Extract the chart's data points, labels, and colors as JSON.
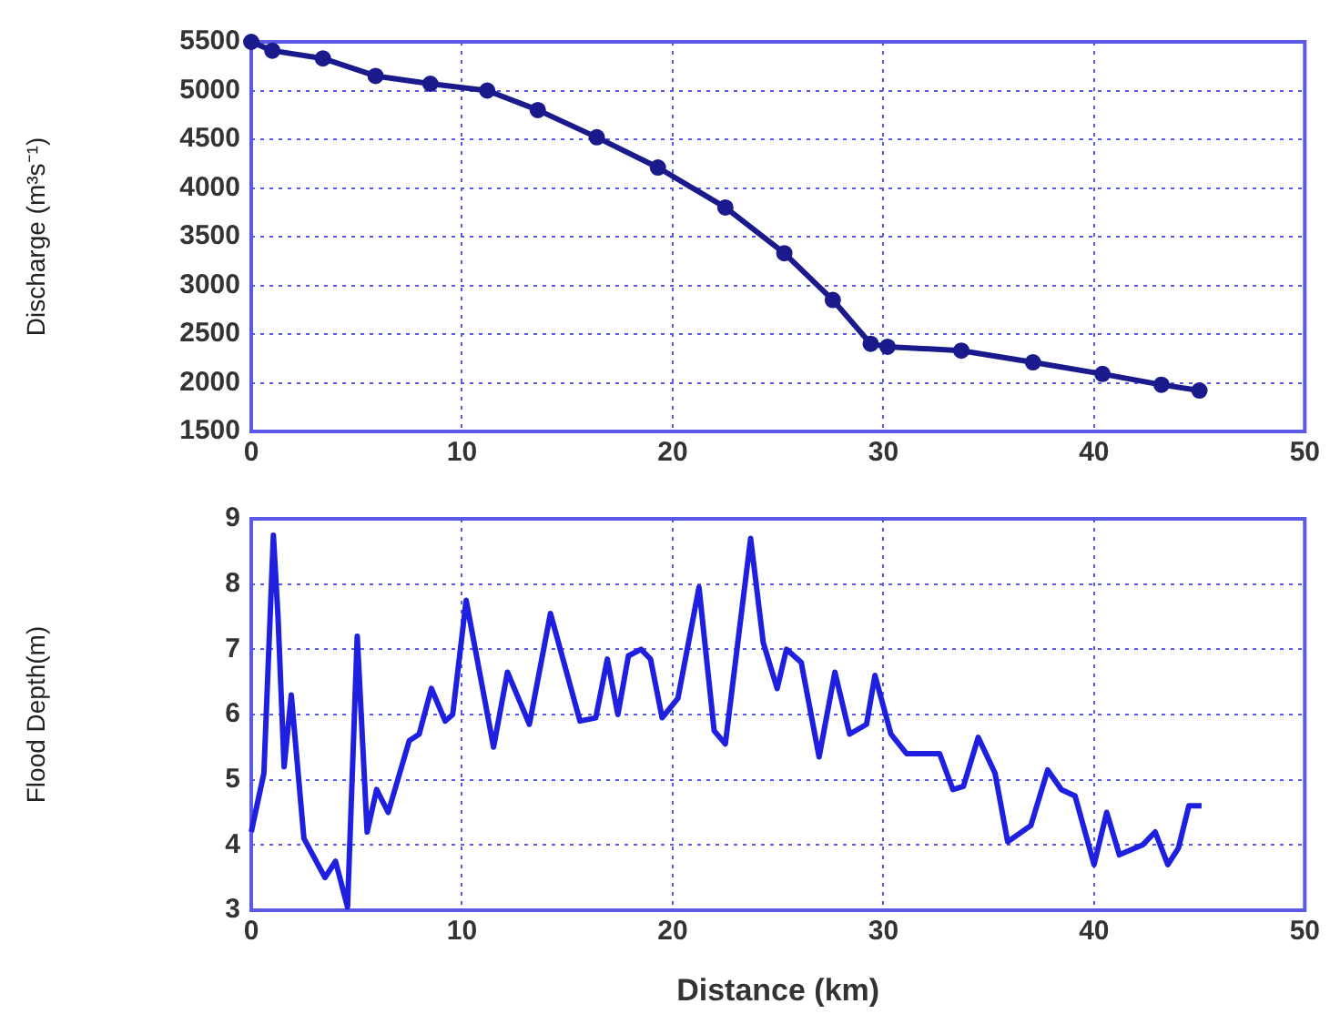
{
  "chart_data": [
    {
      "type": "line",
      "ylabel": "Discharge (m³s⁻¹)",
      "x": [
        0,
        1.0,
        3.4,
        5.9,
        8.5,
        11.2,
        13.6,
        16.4,
        19.3,
        22.5,
        25.3,
        27.6,
        29.4,
        30.2,
        33.7,
        37.1,
        40.4,
        43.2,
        45.0
      ],
      "series": [
        {
          "color": "#1a1a8c",
          "values": [
            5500,
            5410,
            5330,
            5150,
            5070,
            5000,
            4800,
            4520,
            4210,
            3800,
            3330,
            2850,
            2400,
            2370,
            2330,
            2210,
            2090,
            1980,
            1920
          ]
        }
      ],
      "xlim": [
        0,
        50
      ],
      "xticks": [
        0,
        10,
        20,
        30,
        40,
        50
      ],
      "ylim": [
        1500,
        5500
      ],
      "yticks": [
        1500,
        2000,
        2500,
        3000,
        3500,
        4000,
        4500,
        5000,
        5500
      ],
      "grid": true,
      "marker": "circle",
      "line_style": "solid"
    },
    {
      "type": "line",
      "xlabel": "Distance (km)",
      "ylabel": "Flood Depth(m)",
      "x": [
        0,
        0.6,
        1.05,
        1.27,
        1.56,
        1.9,
        2.5,
        3.5,
        4.0,
        4.57,
        5.03,
        5.5,
        5.95,
        6.5,
        7.5,
        7.97,
        8.55,
        9.2,
        9.56,
        10.2,
        11.5,
        12.16,
        13.2,
        14.2,
        15.6,
        16.35,
        16.9,
        17.4,
        17.9,
        18.5,
        18.95,
        19.5,
        20.25,
        21.25,
        21.97,
        22.5,
        23.7,
        24.3,
        24.96,
        25.4,
        26.1,
        26.95,
        27.7,
        28.4,
        29.2,
        29.6,
        30.36,
        31.1,
        32.67,
        33.3,
        33.8,
        34.5,
        35.3,
        35.9,
        37.0,
        37.8,
        38.45,
        39.1,
        40.0,
        40.6,
        41.2,
        42.3,
        42.9,
        43.5,
        44.0,
        44.5,
        45.1
      ],
      "series": [
        {
          "color": "#1f1fe0",
          "values": [
            4.2,
            5.1,
            8.75,
            7.5,
            5.2,
            6.3,
            4.1,
            3.5,
            3.75,
            3.05,
            7.2,
            4.2,
            4.85,
            4.5,
            5.6,
            5.7,
            6.4,
            5.9,
            6.0,
            7.75,
            5.5,
            6.65,
            5.85,
            7.55,
            5.9,
            5.95,
            6.85,
            6.0,
            6.9,
            7.0,
            6.85,
            5.95,
            6.25,
            7.95,
            5.75,
            5.55,
            8.7,
            7.1,
            6.4,
            7.0,
            6.8,
            5.35,
            6.65,
            5.7,
            5.85,
            6.6,
            5.7,
            5.4,
            5.4,
            4.85,
            4.9,
            5.65,
            5.1,
            4.05,
            4.3,
            5.15,
            4.85,
            4.75,
            3.7,
            4.5,
            3.85,
            4.0,
            4.2,
            3.7,
            3.95,
            4.6,
            4.6
          ]
        }
      ],
      "xlim": [
        0,
        50
      ],
      "xticks": [
        0,
        10,
        20,
        30,
        40,
        50
      ],
      "ylim": [
        3,
        9
      ],
      "yticks": [
        3,
        4,
        5,
        6,
        7,
        8,
        9
      ],
      "grid": true,
      "line_style": "solid"
    }
  ]
}
